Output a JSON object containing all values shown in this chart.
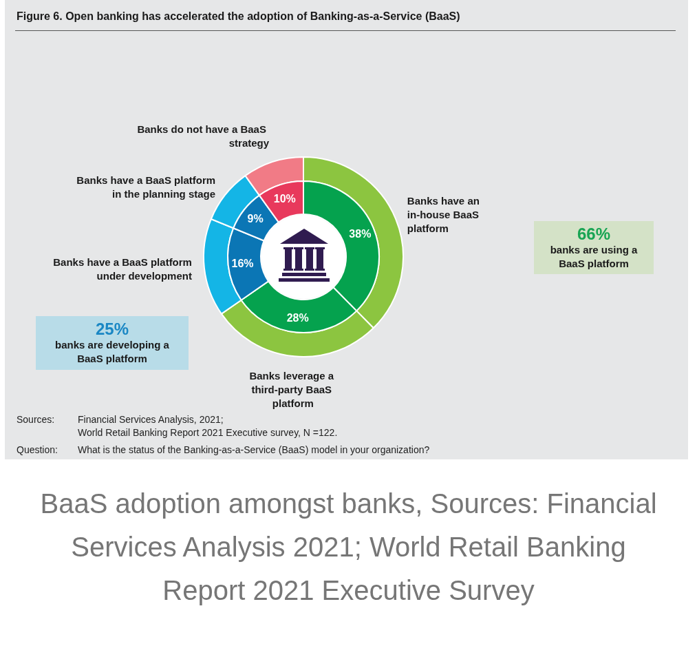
{
  "chart_data": {
    "type": "donut",
    "title": "Figure 6. Open banking has accelerated the adoption of Banking-as-a-Service (BaaS)",
    "categories": [
      "Banks have an in-house BaaS platform",
      "Banks leverage a third-party BaaS platform",
      "Banks have a BaaS platform under development",
      "Banks have a BaaS platform in the planning stage",
      "Banks do not have a BaaS strategy"
    ],
    "series": [
      {
        "values": [
          38,
          28,
          16,
          9,
          10
        ],
        "colors": [
          "#8cc540",
          "#8cc540",
          "#14b5e6",
          "#14b5e6",
          "#f17b86"
        ]
      },
      {
        "values": [
          38,
          28,
          16,
          9,
          10
        ],
        "colors": [
          "#05a24e",
          "#05a24e",
          "#0b76b5",
          "#0b76b5",
          "#e8395c"
        ],
        "value_labels": [
          "38%",
          "28%",
          "16%",
          "9%",
          "10%"
        ]
      }
    ],
    "annotations": [
      "66%",
      "banks are using a BaaS platform",
      "25%",
      "banks are developing a BaaS platform",
      "Sources: Financial Services Analysis, 2021; World Retail Banking Report 2021 Executive survey, N =122.",
      "Question: What is the status of the Banking-as-a-Service (BaaS) model in your organization?",
      "BaaS adoption amongst banks, Sources: Financial Services Analysis 2021; World Retail Banking Report 2021 Executive Survey"
    ]
  }
}
